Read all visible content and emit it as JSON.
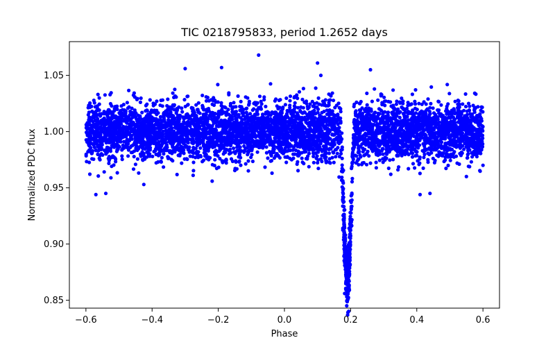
{
  "chart_data": {
    "type": "scatter",
    "title": "TIC 0218795833, period 1.2652 days",
    "xlabel": "Phase",
    "ylabel": "Normalized PDC flux",
    "xlim": [
      -0.65,
      0.65
    ],
    "ylim": [
      0.843,
      1.08
    ],
    "xticks": [
      -0.6,
      -0.4,
      -0.2,
      0.0,
      0.2,
      0.4,
      0.6
    ],
    "xtick_labels": [
      "−0.6",
      "−0.4",
      "−0.2",
      "0.0",
      "0.2",
      "0.4",
      "0.6"
    ],
    "yticks": [
      0.85,
      0.9,
      0.95,
      1.0,
      1.05
    ],
    "ytick_labels": [
      "0.85",
      "0.90",
      "0.95",
      "1.00",
      "1.05"
    ],
    "grid": false,
    "marker_color": "#0000ff",
    "series": [
      {
        "name": "PDC flux",
        "phase_range": [
          -0.6,
          0.6
        ],
        "baseline_flux": 1.0,
        "scatter_std": 0.013,
        "transit_center": 0.19,
        "transit_half_width": 0.02,
        "transit_min_flux": 0.855,
        "outliers": [
          [
            -0.078,
            1.068
          ],
          [
            0.1,
            1.061
          ],
          [
            -0.57,
            0.944
          ],
          [
            -0.54,
            0.945
          ],
          [
            0.41,
            0.944
          ],
          [
            0.44,
            0.945
          ],
          [
            -0.425,
            0.953
          ],
          [
            0.6,
            0.97
          ],
          [
            0.55,
            0.96
          ],
          [
            -0.19,
            1.057
          ],
          [
            0.26,
            1.055
          ],
          [
            -0.3,
            1.056
          ],
          [
            0.19,
            0.853
          ],
          [
            0.182,
            0.856
          ],
          [
            0.195,
            0.862
          ]
        ]
      }
    ]
  }
}
